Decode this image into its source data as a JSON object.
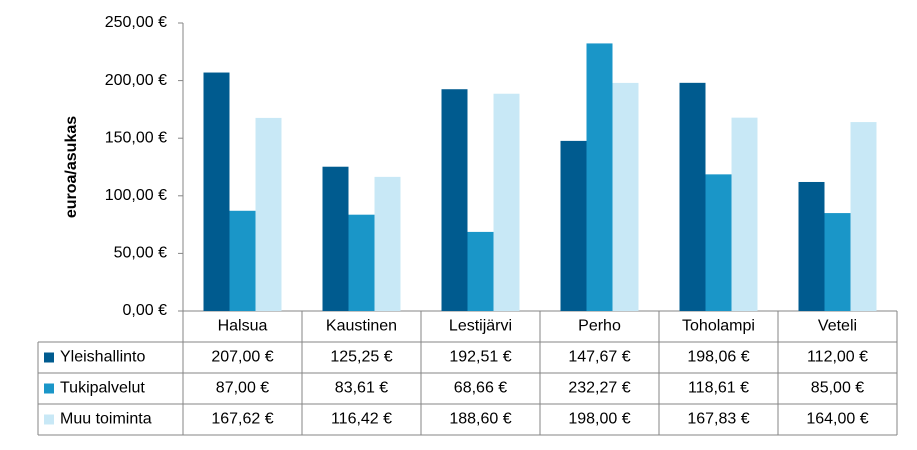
{
  "chart_data": {
    "type": "bar",
    "y_label": "euroa/asukas",
    "categories": [
      "Halsua",
      "Kaustinen",
      "Lestijärvi",
      "Perho",
      "Toholampi",
      "Veteli"
    ],
    "series": [
      {
        "name": "Yleishallinto",
        "color": "#005b8f",
        "values": [
          207.0,
          125.25,
          192.51,
          147.67,
          198.06,
          112.0
        ],
        "value_labels": [
          "207,00 €",
          "125,25 €",
          "192,51 €",
          "147,67 €",
          "198,06 €",
          "112,00 €"
        ]
      },
      {
        "name": "Tukipalvelut",
        "color": "#1a96c8",
        "values": [
          87.0,
          83.61,
          68.66,
          232.27,
          118.61,
          85.0
        ],
        "value_labels": [
          "87,00 €",
          "83,61 €",
          "68,66 €",
          "232,27 €",
          "118,61 €",
          "85,00 €"
        ]
      },
      {
        "name": "Muu toiminta",
        "color": "#c8e8f6",
        "values": [
          167.62,
          116.42,
          188.6,
          198.0,
          167.83,
          164.0
        ],
        "value_labels": [
          "167,62 €",
          "116,42 €",
          "188,60 €",
          "198,00 €",
          "167,83 €",
          "164,00 €"
        ]
      }
    ],
    "ylim": [
      0,
      250
    ],
    "yticks": [
      {
        "value": 0,
        "label": "0,00 €"
      },
      {
        "value": 50,
        "label": "50,00 €"
      },
      {
        "value": 100,
        "label": "100,00 €"
      },
      {
        "value": 150,
        "label": "150,00 €"
      },
      {
        "value": 200,
        "label": "200,00 €"
      },
      {
        "value": 250,
        "label": "250,00 €"
      }
    ]
  }
}
